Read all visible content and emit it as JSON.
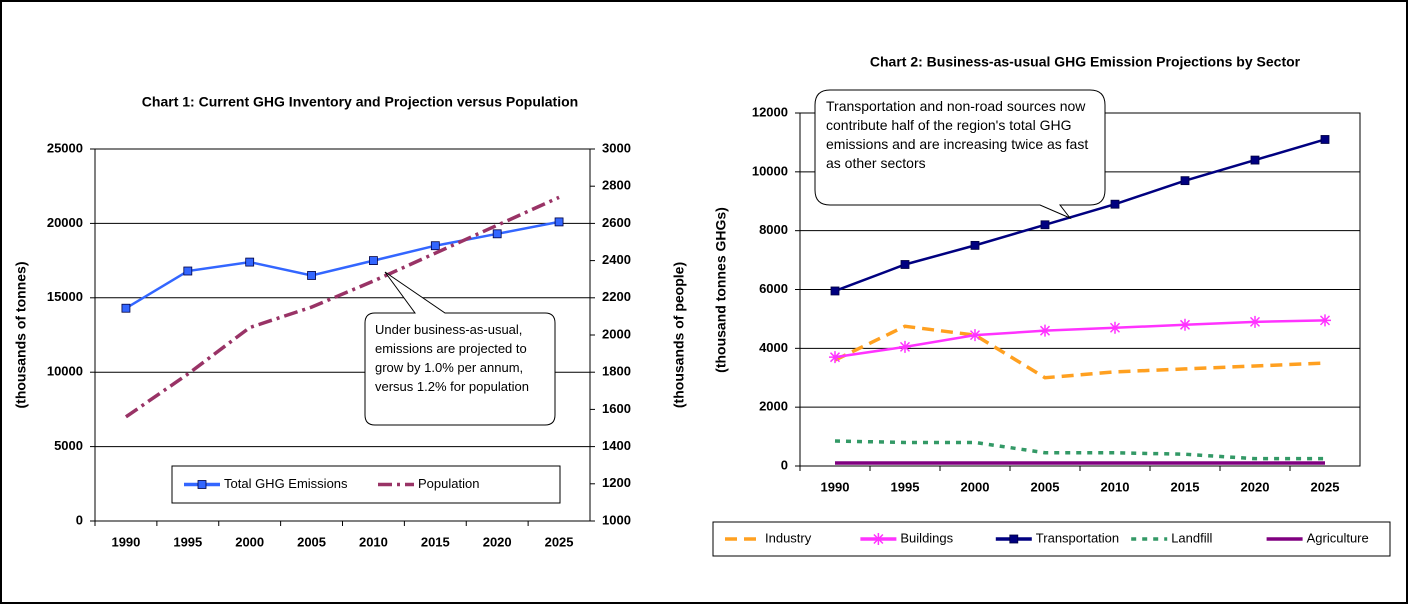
{
  "chart_data": [
    {
      "type": "line",
      "title": "Chart 1: Current GHG Inventory and Projection versus Population",
      "y_label": "(thousands of tonnes)",
      "y2_label": "(thousands of people)",
      "annotation": "Under business-as-usual, emissions are projected to grow by 1.0% per annum, versus 1.2% for population",
      "categories": [
        "1990",
        "1995",
        "2000",
        "2005",
        "2010",
        "2015",
        "2020",
        "2025"
      ],
      "ylim": [
        0,
        25000
      ],
      "yticks": [
        0,
        5000,
        10000,
        15000,
        20000,
        25000
      ],
      "y2lim": [
        1000,
        3000
      ],
      "y2ticks": [
        1000,
        1200,
        1400,
        1600,
        1800,
        2000,
        2200,
        2400,
        2600,
        2800,
        3000
      ],
      "grid": true,
      "legend": "inside-bottom",
      "series": [
        {
          "name": "Total GHG Emissions",
          "color": "#3366ff",
          "dash": "solid",
          "marker": "square",
          "values": [
            14300,
            16800,
            17400,
            16500,
            17500,
            18500,
            19300,
            20100
          ]
        },
        {
          "name": "Population",
          "color": "#993366",
          "dash": "dashdot",
          "marker": null,
          "axis": "y2",
          "values": [
            1560,
            1790,
            2040,
            2150,
            2290,
            2440,
            2590,
            2740
          ]
        }
      ]
    },
    {
      "type": "line",
      "title": "Chart 2: Business-as-usual GHG Emission Projections by Sector",
      "y_label": "(thousand tonnes GHGs)",
      "annotation": "Transportation and non-road sources now contribute half of the region's total GHG emissions and are increasing twice as fast as other sectors",
      "categories": [
        "1990",
        "1995",
        "2000",
        "2005",
        "2010",
        "2015",
        "2020",
        "2025"
      ],
      "ylim": [
        0,
        12000
      ],
      "yticks": [
        0,
        2000,
        4000,
        6000,
        8000,
        10000,
        12000
      ],
      "grid": true,
      "legend": "below",
      "series": [
        {
          "name": "Industry",
          "color": "#ffa020",
          "dash": "dash",
          "marker": null,
          "values": [
            3600,
            4750,
            4450,
            3000,
            3200,
            3300,
            3400,
            3500
          ]
        },
        {
          "name": "Buildings",
          "color": "#ff33ff",
          "dash": "solid",
          "marker": "star",
          "values": [
            3700,
            4050,
            4450,
            4600,
            4700,
            4800,
            4900,
            4950
          ]
        },
        {
          "name": "Transportation",
          "color": "#000080",
          "dash": "solid",
          "marker": "square",
          "values": [
            5950,
            6850,
            7500,
            8200,
            8900,
            9700,
            10400,
            11100
          ]
        },
        {
          "name": "Landfill",
          "color": "#339966",
          "dash": "dot",
          "marker": null,
          "values": [
            850,
            800,
            800,
            450,
            450,
            400,
            250,
            250
          ]
        },
        {
          "name": "Agriculture",
          "color": "#800080",
          "dash": "solid",
          "marker": null,
          "values": [
            100,
            100,
            100,
            100,
            100,
            100,
            100,
            100
          ]
        }
      ]
    }
  ]
}
